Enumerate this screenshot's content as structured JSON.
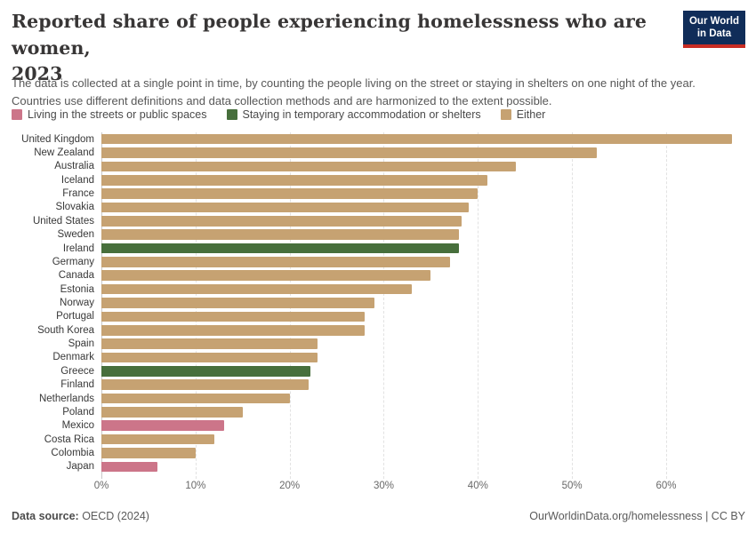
{
  "header": {
    "title_line1": "Reported share of people experiencing homelessness who are women,",
    "title_line2": "2023",
    "subtitle": "The data is collected at a single point in time, by counting the people living on the street or staying in shelters on one night of the year. Countries use different definitions and data collection methods and are harmonized to the extent possible.",
    "logo": {
      "line1": "Our World",
      "line2": "in Data"
    }
  },
  "legend": [
    {
      "key": "streets",
      "label": "Living in the streets or public spaces"
    },
    {
      "key": "shelters",
      "label": "Staying in temporary accommodation or shelters"
    },
    {
      "key": "either",
      "label": "Either"
    }
  ],
  "colors": {
    "streets": "#CC7589",
    "shelters": "#476F3C",
    "either": "#C6A272",
    "logo_bg": "#102D59",
    "logo_accent": "#C82D24"
  },
  "chart_data": {
    "type": "bar",
    "orientation": "horizontal",
    "title": "Reported share of people experiencing homelessness who are women, 2023",
    "xlabel": "",
    "ylabel": "",
    "unit": "%",
    "xlim": [
      0,
      68.6
    ],
    "x_tick_values": [
      0,
      10,
      20,
      30,
      40,
      50,
      60
    ],
    "x_tick_labels": [
      "0%",
      "10%",
      "20%",
      "30%",
      "40%",
      "50%",
      "60%"
    ],
    "grid": "dashed-vertical",
    "legend_position": "top",
    "bars": [
      {
        "country": "United Kingdom",
        "value": 67,
        "category": "either"
      },
      {
        "country": "New Zealand",
        "value": 52.6,
        "category": "either"
      },
      {
        "country": "Australia",
        "value": 44,
        "category": "either"
      },
      {
        "country": "Iceland",
        "value": 41,
        "category": "either"
      },
      {
        "country": "France",
        "value": 40,
        "category": "either"
      },
      {
        "country": "Slovakia",
        "value": 39,
        "category": "either"
      },
      {
        "country": "United States",
        "value": 38.3,
        "category": "either"
      },
      {
        "country": "Sweden",
        "value": 38,
        "category": "either"
      },
      {
        "country": "Ireland",
        "value": 38,
        "category": "shelters"
      },
      {
        "country": "Germany",
        "value": 37,
        "category": "either"
      },
      {
        "country": "Canada",
        "value": 35,
        "category": "either"
      },
      {
        "country": "Estonia",
        "value": 33,
        "category": "either"
      },
      {
        "country": "Norway",
        "value": 29,
        "category": "either"
      },
      {
        "country": "Portugal",
        "value": 28,
        "category": "either"
      },
      {
        "country": "South Korea",
        "value": 28,
        "category": "either"
      },
      {
        "country": "Spain",
        "value": 23,
        "category": "either"
      },
      {
        "country": "Denmark",
        "value": 23,
        "category": "either"
      },
      {
        "country": "Greece",
        "value": 22.2,
        "category": "shelters"
      },
      {
        "country": "Finland",
        "value": 22,
        "category": "either"
      },
      {
        "country": "Netherlands",
        "value": 20,
        "category": "either"
      },
      {
        "country": "Poland",
        "value": 15,
        "category": "either"
      },
      {
        "country": "Mexico",
        "value": 13,
        "category": "streets"
      },
      {
        "country": "Costa Rica",
        "value": 12,
        "category": "either"
      },
      {
        "country": "Colombia",
        "value": 10,
        "category": "either"
      },
      {
        "country": "Japan",
        "value": 6,
        "category": "streets"
      }
    ]
  },
  "footer": {
    "source_label": "Data source:",
    "source_value": " OECD (2024)",
    "attribution": "OurWorldinData.org/homelessness | CC BY"
  }
}
